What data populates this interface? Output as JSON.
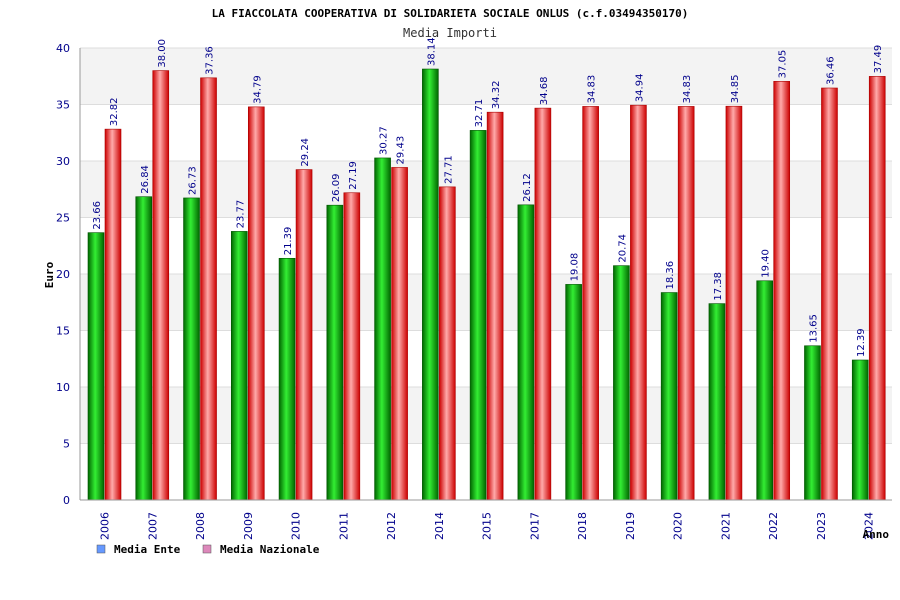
{
  "chart_data": {
    "type": "bar",
    "title": "LA FIACCOLATA COOPERATIVA DI SOLIDARIETA SOCIALE ONLUS (c.f.03494350170)",
    "subtitle": "Media Importi",
    "xlabel": "Anno",
    "ylabel": "Euro",
    "ylim": [
      0,
      40
    ],
    "yticks": [
      0,
      5,
      10,
      15,
      20,
      25,
      30,
      35,
      40
    ],
    "categories": [
      "2006",
      "2007",
      "2008",
      "2009",
      "2010",
      "2011",
      "2012",
      "2014",
      "2015",
      "2017",
      "2018",
      "2019",
      "2020",
      "2021",
      "2022",
      "2023",
      "2024"
    ],
    "series": [
      {
        "name": "Media Ente",
        "values": [
          23.66,
          26.84,
          26.73,
          23.77,
          21.39,
          26.09,
          30.27,
          38.14,
          32.71,
          26.12,
          19.08,
          20.74,
          18.36,
          17.38,
          19.4,
          13.65,
          12.39
        ],
        "labels": [
          "23.66",
          "26.84",
          "26.73",
          "23.77",
          "21.39",
          "26.09",
          "30.27",
          "38.14",
          "32.71",
          "26.12",
          "19.08",
          "20.74",
          "18.36",
          "17.38",
          "19.40",
          "13.65",
          "12.39"
        ]
      },
      {
        "name": "Media Nazionale",
        "values": [
          32.82,
          38.0,
          37.36,
          34.79,
          29.24,
          27.19,
          29.43,
          27.71,
          34.32,
          34.68,
          34.83,
          34.94,
          34.83,
          34.85,
          37.05,
          36.46,
          37.49
        ],
        "labels": [
          "32.82",
          "38.00",
          "37.36",
          "34.79",
          "29.24",
          "27.19",
          "29.43",
          "27.71",
          "34.32",
          "34.68",
          "34.83",
          "34.94",
          "34.83",
          "34.85",
          "37.05",
          "36.46",
          "37.49"
        ]
      }
    ],
    "legend": [
      "Media Ente",
      "Media Nazionale"
    ],
    "legend_position": "bottom-left",
    "grid": true
  },
  "colors": {
    "ente_dark": "#007a00",
    "ente_light": "#33ee33",
    "naz_dark": "#cc0000",
    "naz_light": "#ffaaaa",
    "legend_ente": "#6699ff",
    "legend_naz": "#dd88bb",
    "band": "#f3f3f3",
    "grid": "#dddddd"
  }
}
